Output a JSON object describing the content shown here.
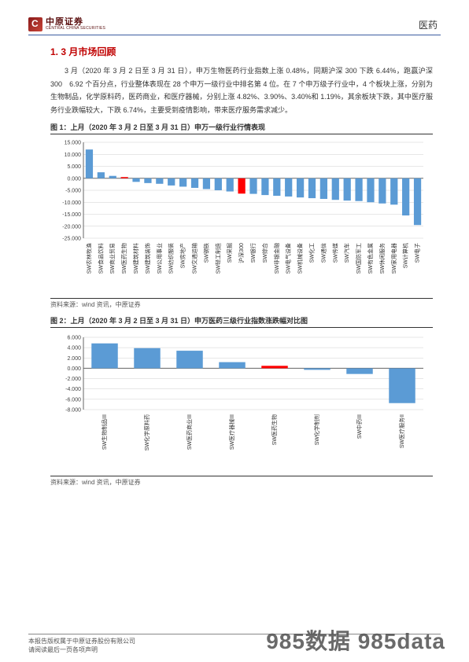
{
  "header": {
    "logo_cn": "中原证券",
    "logo_en": "CENTRAL CHINA SECURITIES",
    "category": "医药"
  },
  "section_title": "1. 3 月市场回顾",
  "paragraph": "3 月（2020 年 3 月 2 日至 3 月 31 日），申万生物医药行业指数上涨 0.48%，同期沪深 300 下跌 6.44%，跑赢沪深 300　6.92 个百分点，行业整体表现在 28 个申万一级行业中排名第 4 位。在 7 个申万级子行业中，4 个板块上涨，分别为生物制品，化学原料药，医药商业，和医疗器械，分别上涨 4.82%、3.90%、3.40%和 1.19%，其余板块下跌，其中医疗服务行业跌幅较大，下跌 6.74%，主要受到疫情影响，带来医疗服务需求减少。",
  "fig1": {
    "caption": "图 1：上月（2020 年 3 月 2 日至 3 月 31 日）申万一级行业行情表现",
    "source": "资料来源：wind 资讯，中原证券",
    "type": "bar",
    "ylim": [
      -25,
      15
    ],
    "yticks": [
      -25,
      -20,
      -15,
      -10,
      -5,
      0,
      5,
      10,
      15
    ],
    "ytick_labels": [
      "-25.000",
      "-20.000",
      "-15.000",
      "-10.000",
      "-5.000",
      "0.000",
      "5.000",
      "10.000",
      "15.000"
    ],
    "bar_color_default": "#5b9bd5",
    "bar_color_highlight": "#ff0000",
    "grid_color": "#cfcfcf",
    "axis_color": "#666666",
    "categories": [
      "SW农林牧渔",
      "SW食品饮料",
      "SW商业贸易",
      "SW医药生物",
      "SW建筑材料",
      "SW建筑装饰",
      "SW公用事业",
      "SW纺织服装",
      "SW房地产",
      "SW交通运输",
      "SW钢铁",
      "SW轻工制造",
      "SW采掘",
      "沪深300",
      "SW银行",
      "SW综合",
      "SW非银金融",
      "SW电气设备",
      "SW机械设备",
      "SW化工",
      "SW通信",
      "SW传媒",
      "SW汽车",
      "SW国防军工",
      "SW有色金属",
      "SW休闲服务",
      "SW家用电器",
      "SW计算机",
      "SW电子"
    ],
    "highlight_indices": [
      3,
      13
    ],
    "values": [
      12,
      2.5,
      1.0,
      0.5,
      -1.5,
      -2.0,
      -2.3,
      -3.0,
      -3.5,
      -4.0,
      -4.5,
      -5.0,
      -5.5,
      -6.4,
      -6.5,
      -7.0,
      -7.3,
      -7.6,
      -8.0,
      -8.3,
      -8.6,
      -9.0,
      -9.3,
      -9.5,
      -10.0,
      -10.5,
      -11.0,
      -15.5,
      -19.5
    ]
  },
  "fig2": {
    "caption": "图 2：上月（2020 年 3 月 2 日至 3 月 31 日）申万医药三级行业指数涨跌幅对比图",
    "source": "资料来源：wind 资讯，中原证券",
    "type": "bar",
    "ylim": [
      -8,
      6
    ],
    "yticks": [
      -8,
      -6,
      -4,
      -2,
      0,
      2,
      4,
      6
    ],
    "ytick_labels": [
      "-8.000",
      "-6.000",
      "-4.000",
      "-2.000",
      "0.000",
      "2.000",
      "4.000",
      "6.000"
    ],
    "bar_color_default": "#5b9bd5",
    "bar_color_highlight": "#ff0000",
    "grid_color": "#cfcfcf",
    "axis_color": "#666666",
    "categories": [
      "SW生物制品III",
      "SW化学原料药",
      "SW医药商业III",
      "SW医疗器械III",
      "SW医药生物",
      "SW化学制剂",
      "SW中药III",
      "SW医疗服务II"
    ],
    "highlight_indices": [
      4
    ],
    "values": [
      4.82,
      3.9,
      3.4,
      1.19,
      0.48,
      -0.3,
      -1.1,
      -6.74
    ]
  },
  "footer": {
    "line1": "本报告版权属于中原证券股份有限公司",
    "line2": "请阅读最后一页各项声明"
  },
  "watermark": "985数据 985data"
}
